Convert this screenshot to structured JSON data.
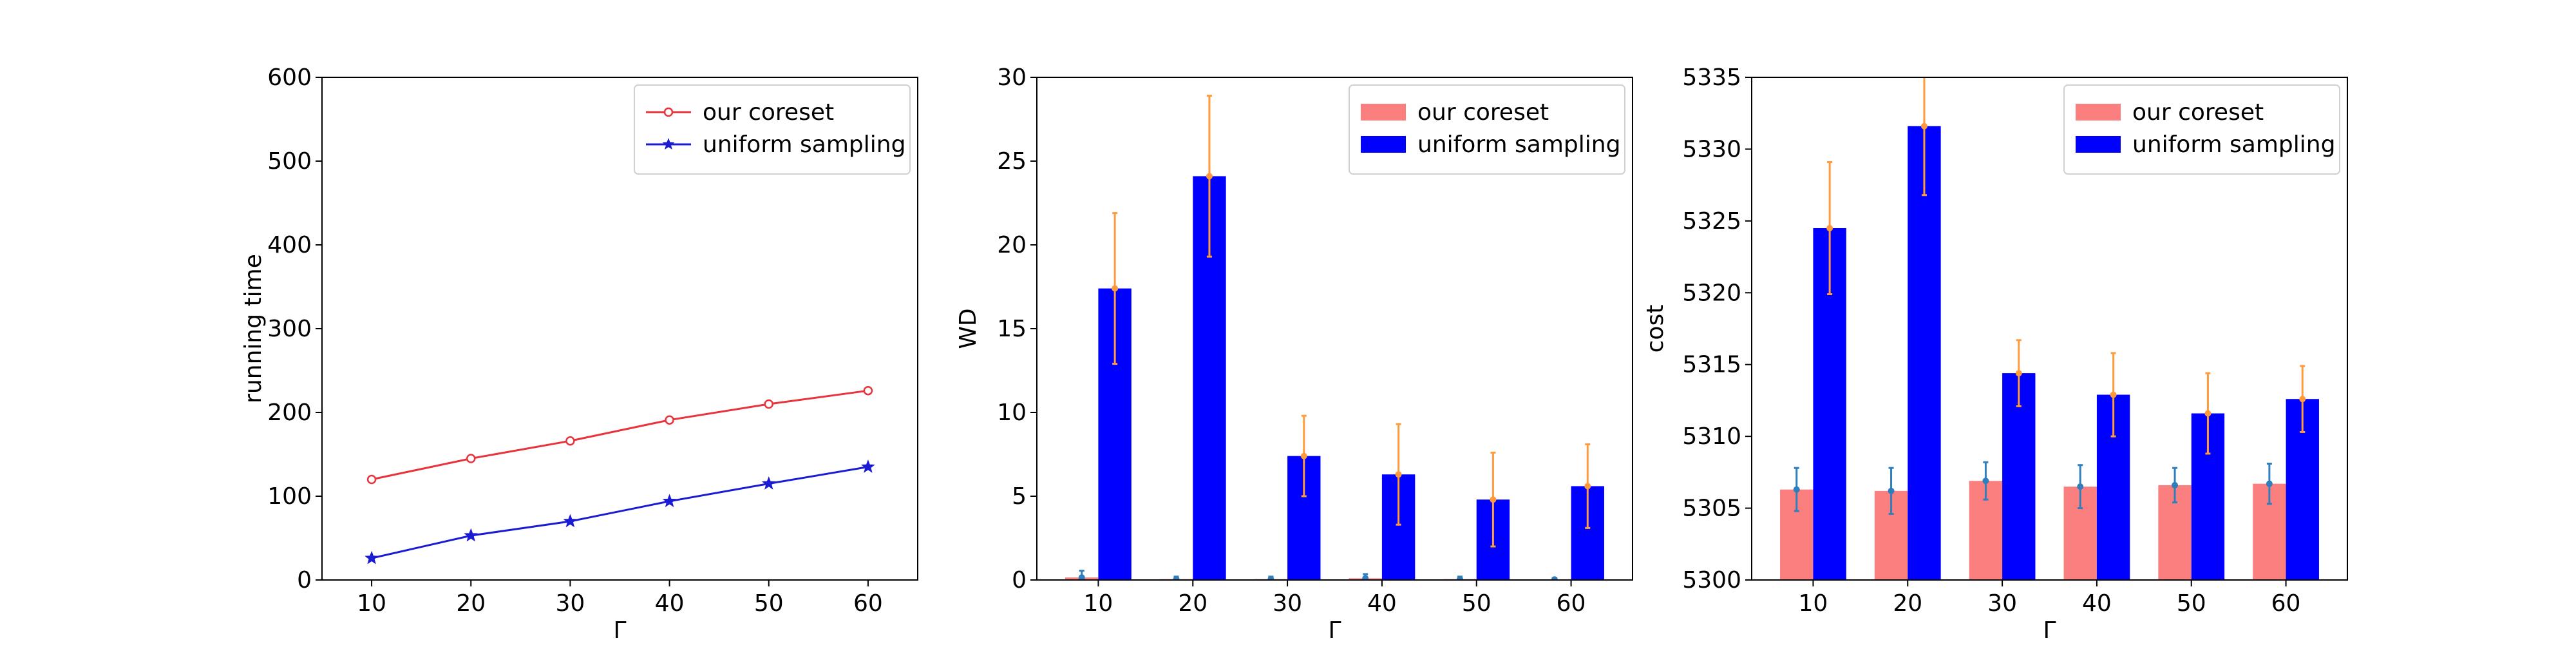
{
  "chart_data": [
    {
      "type": "line",
      "xlabel": "Γ",
      "ylabel": "running time",
      "xlim": [
        5,
        65
      ],
      "ylim": [
        0,
        600
      ],
      "xticks": [
        10,
        20,
        30,
        40,
        50,
        60
      ],
      "yticks": [
        0,
        100,
        200,
        300,
        400,
        500,
        600
      ],
      "x": [
        10,
        20,
        30,
        40,
        50,
        60
      ],
      "legend_position": "top-right",
      "series": [
        {
          "name": "our coreset",
          "values": [
            120,
            145,
            166,
            191,
            210,
            226
          ],
          "errors": [
            2,
            3,
            3,
            3,
            4,
            5
          ],
          "color": "#e8333c",
          "marker": "circle"
        },
        {
          "name": "uniform sampling",
          "values": [
            26,
            53,
            70,
            94,
            115,
            135
          ],
          "errors": [
            2,
            2,
            2,
            2,
            3,
            3
          ],
          "color": "#1b1bd4",
          "marker": "star"
        }
      ]
    },
    {
      "type": "bar",
      "xlabel": "Γ",
      "ylabel": "WD",
      "ylim": [
        0,
        30
      ],
      "yticks": [
        0,
        5,
        10,
        15,
        20,
        25,
        30
      ],
      "categories": [
        "10",
        "20",
        "30",
        "40",
        "50",
        "60"
      ],
      "legend_position": "top-right",
      "series": [
        {
          "name": "our coreset",
          "values": [
            0.15,
            0.05,
            0.05,
            0.1,
            0.05,
            0.03
          ],
          "errors": [
            0.4,
            0.15,
            0.15,
            0.25,
            0.15,
            0.1
          ],
          "color": "#fb7f7f",
          "error_color": "#2f7fbd"
        },
        {
          "name": "uniform sampling",
          "values": [
            17.4,
            24.1,
            7.4,
            6.3,
            4.8,
            5.6
          ],
          "errors": [
            4.5,
            4.8,
            2.4,
            3.0,
            2.8,
            2.5
          ],
          "color": "#0000ff",
          "error_color": "#ff9b3d"
        }
      ]
    },
    {
      "type": "bar",
      "xlabel": "Γ",
      "ylabel": "cost",
      "ylim": [
        5300,
        5335
      ],
      "yticks": [
        5300,
        5305,
        5310,
        5315,
        5320,
        5325,
        5330,
        5335
      ],
      "categories": [
        "10",
        "20",
        "30",
        "40",
        "50",
        "60"
      ],
      "legend_position": "top-right",
      "series": [
        {
          "name": "our coreset",
          "values": [
            5306.3,
            5306.2,
            5306.9,
            5306.5,
            5306.6,
            5306.7
          ],
          "errors": [
            1.5,
            1.6,
            1.3,
            1.5,
            1.2,
            1.4
          ],
          "color": "#fb7f7f",
          "error_color": "#2f7fbd"
        },
        {
          "name": "uniform sampling",
          "values": [
            5324.5,
            5331.6,
            5314.4,
            5312.9,
            5311.6,
            5312.6
          ],
          "errors": [
            4.6,
            4.8,
            2.3,
            2.9,
            2.8,
            2.3
          ],
          "color": "#0000ff",
          "error_color": "#ff9b3d"
        }
      ]
    }
  ]
}
